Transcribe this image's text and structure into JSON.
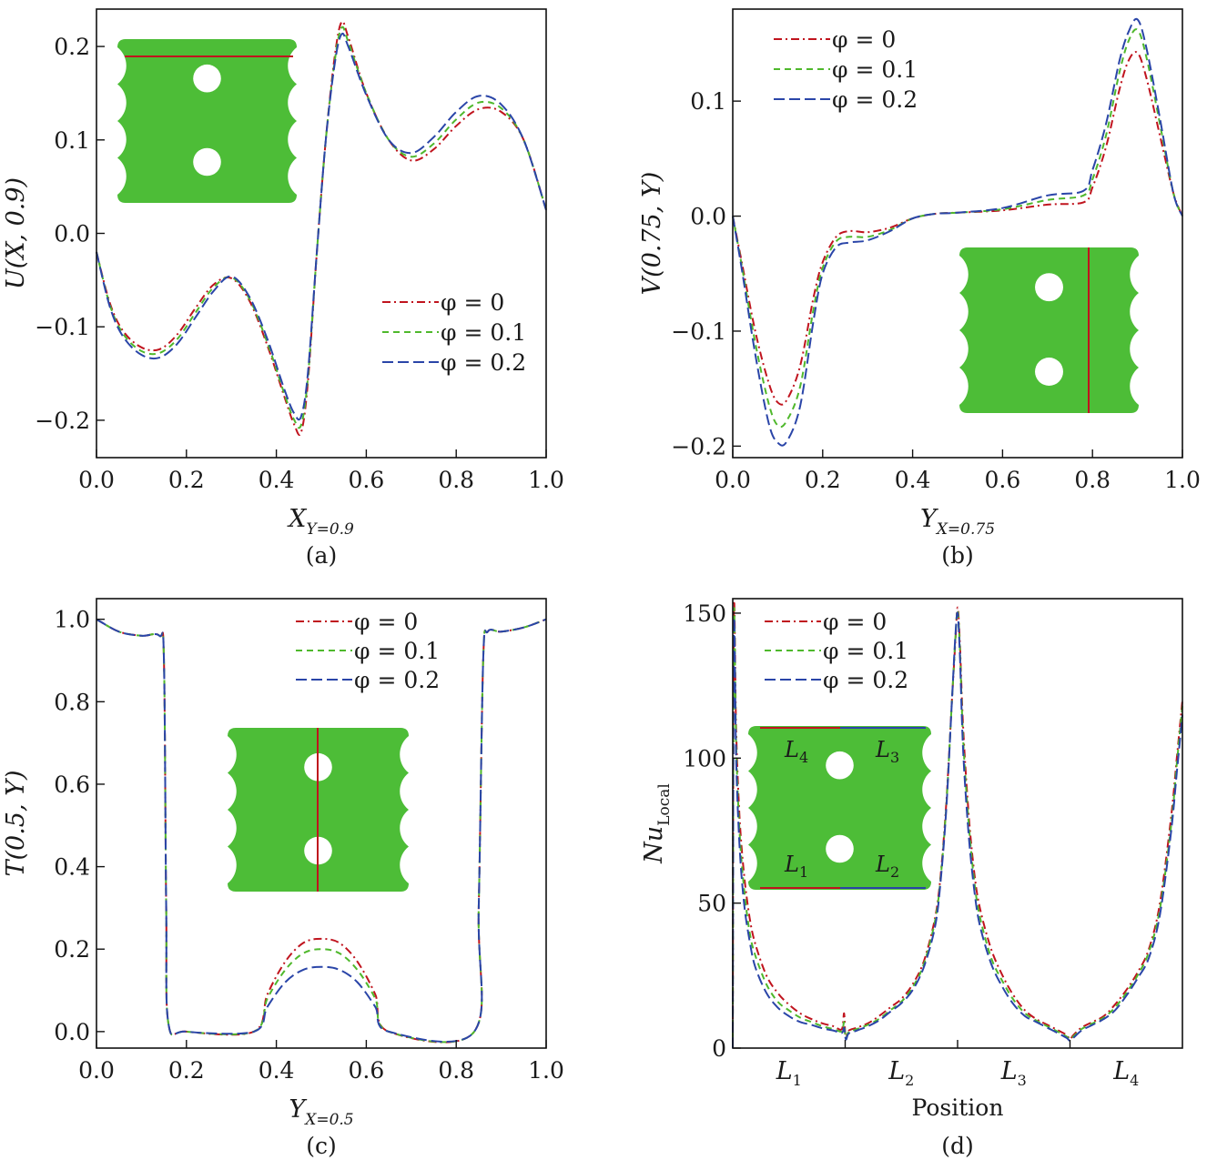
{
  "figure": {
    "panels": [
      "(a)",
      "(b)",
      "(c)",
      "(d)"
    ]
  },
  "colors": {
    "phi0": "#c0141e",
    "phi01": "#4fb82c",
    "phi02": "#2a45a8",
    "inset_fill": "#4dbd37",
    "inset_line": "#c0141e"
  },
  "chart_data": [
    {
      "panel": "(a)",
      "type": "line",
      "xlabel": "X",
      "xlabel_sub": "Y=0.9",
      "ylabel": "U(X, 0.9)",
      "xlim": [
        0,
        1
      ],
      "ylim": [
        -0.24,
        0.24
      ],
      "xticks": [
        "0.0",
        "0.2",
        "0.4",
        "0.6",
        "0.8",
        "1.0"
      ],
      "yticks": [
        "0.2",
        "0.1",
        "0.0",
        "−0.1",
        "−0.2"
      ],
      "ytick_values": [
        0.2,
        0.1,
        0.0,
        -0.1,
        -0.2
      ],
      "legend_position": "center-right",
      "legend": [
        "φ = 0",
        "φ = 0.1",
        "φ = 0.2"
      ],
      "x": [
        0,
        0.03,
        0.06,
        0.1,
        0.14,
        0.18,
        0.22,
        0.26,
        0.3,
        0.34,
        0.38,
        0.42,
        0.44,
        0.455,
        0.47,
        0.49,
        0.51,
        0.53,
        0.545,
        0.56,
        0.6,
        0.65,
        0.7,
        0.75,
        0.8,
        0.85,
        0.9,
        0.95,
        1.0
      ],
      "series": [
        {
          "name": "φ = 0",
          "values": [
            -0.02,
            -0.075,
            -0.105,
            -0.122,
            -0.124,
            -0.108,
            -0.08,
            -0.055,
            -0.048,
            -0.072,
            -0.12,
            -0.178,
            -0.205,
            -0.213,
            -0.16,
            -0.02,
            0.1,
            0.19,
            0.226,
            0.21,
            0.15,
            0.1,
            0.078,
            0.09,
            0.115,
            0.133,
            0.13,
            0.1,
            0.025
          ]
        },
        {
          "name": "φ = 0.1",
          "values": [
            -0.02,
            -0.077,
            -0.108,
            -0.126,
            -0.128,
            -0.113,
            -0.085,
            -0.058,
            -0.047,
            -0.07,
            -0.117,
            -0.175,
            -0.2,
            -0.205,
            -0.155,
            -0.02,
            0.1,
            0.185,
            0.22,
            0.205,
            0.15,
            0.1,
            0.082,
            0.096,
            0.122,
            0.14,
            0.134,
            0.1,
            0.025
          ]
        },
        {
          "name": "φ = 0.2",
          "values": [
            -0.02,
            -0.079,
            -0.111,
            -0.13,
            -0.133,
            -0.118,
            -0.09,
            -0.062,
            -0.046,
            -0.068,
            -0.113,
            -0.17,
            -0.193,
            -0.196,
            -0.15,
            -0.02,
            0.1,
            0.182,
            0.213,
            0.2,
            0.148,
            0.1,
            0.086,
            0.103,
            0.13,
            0.147,
            0.138,
            0.1,
            0.025
          ]
        }
      ]
    },
    {
      "panel": "(b)",
      "type": "line",
      "xlabel": "Y",
      "xlabel_sub": "X=0.75",
      "ylabel": "V(0.75, Y)",
      "xlim": [
        0,
        1
      ],
      "ylim": [
        -0.21,
        0.18
      ],
      "xticks": [
        "0.0",
        "0.2",
        "0.4",
        "0.6",
        "0.8",
        "1.0"
      ],
      "yticks": [
        "0.1",
        "0.0",
        "−0.1",
        "−0.2"
      ],
      "ytick_values": [
        0.1,
        0.0,
        -0.1,
        -0.2
      ],
      "legend_position": "top-left",
      "legend": [
        "φ = 0",
        "φ = 0.1",
        "φ = 0.2"
      ],
      "x": [
        0,
        0.02,
        0.05,
        0.08,
        0.1,
        0.12,
        0.15,
        0.18,
        0.2,
        0.23,
        0.26,
        0.3,
        0.35,
        0.4,
        0.45,
        0.5,
        0.6,
        0.7,
        0.78,
        0.8,
        0.83,
        0.86,
        0.88,
        0.9,
        0.92,
        0.95,
        0.98,
        1.0
      ],
      "series": [
        {
          "name": "φ = 0",
          "values": [
            0,
            -0.04,
            -0.1,
            -0.145,
            -0.162,
            -0.16,
            -0.13,
            -0.07,
            -0.04,
            -0.018,
            -0.013,
            -0.014,
            -0.01,
            -0.002,
            0.002,
            0.003,
            0.005,
            0.01,
            0.012,
            0.025,
            0.06,
            0.11,
            0.135,
            0.142,
            0.12,
            0.07,
            0.02,
            0
          ]
        },
        {
          "name": "φ = 0.1",
          "values": [
            0,
            -0.043,
            -0.11,
            -0.163,
            -0.182,
            -0.178,
            -0.148,
            -0.08,
            -0.045,
            -0.022,
            -0.018,
            -0.018,
            -0.012,
            -0.002,
            0.002,
            0.003,
            0.006,
            0.014,
            0.018,
            0.032,
            0.07,
            0.125,
            0.152,
            0.162,
            0.138,
            0.08,
            0.02,
            0
          ]
        },
        {
          "name": "φ = 0.2",
          "values": [
            0,
            -0.046,
            -0.12,
            -0.18,
            -0.197,
            -0.196,
            -0.165,
            -0.09,
            -0.05,
            -0.027,
            -0.023,
            -0.021,
            -0.013,
            -0.002,
            0.002,
            0.003,
            0.007,
            0.018,
            0.022,
            0.04,
            0.08,
            0.135,
            0.16,
            0.171,
            0.146,
            0.085,
            0.02,
            0
          ]
        }
      ]
    },
    {
      "panel": "(c)",
      "type": "line",
      "xlabel": "Y",
      "xlabel_sub": "X=0.5",
      "ylabel": "T(0.5, Y)",
      "xlim": [
        0,
        1
      ],
      "ylim": [
        -0.04,
        1.05
      ],
      "xticks": [
        "0.0",
        "0.2",
        "0.4",
        "0.6",
        "0.8",
        "1.0"
      ],
      "yticks": [
        "1.0",
        "0.8",
        "0.6",
        "0.4",
        "0.2",
        "0.0"
      ],
      "ytick_values": [
        1.0,
        0.8,
        0.6,
        0.4,
        0.2,
        0.0
      ],
      "legend_position": "top-center",
      "legend": [
        "φ = 0",
        "φ = 0.1",
        "φ = 0.2"
      ],
      "x": [
        0,
        0.05,
        0.1,
        0.14,
        0.15,
        0.155,
        0.16,
        0.2,
        0.35,
        0.38,
        0.42,
        0.46,
        0.5,
        0.54,
        0.58,
        0.62,
        0.65,
        0.84,
        0.85,
        0.86,
        0.87,
        0.9,
        0.95,
        1.0
      ],
      "series": [
        {
          "name": "φ = 0",
          "values": [
            1.0,
            0.97,
            0.96,
            0.96,
            0.9,
            0.3,
            0.02,
            0,
            0,
            0.09,
            0.17,
            0.215,
            0.225,
            0.215,
            0.17,
            0.09,
            0,
            0,
            0.3,
            0.9,
            0.97,
            0.97,
            0.98,
            1.0
          ]
        },
        {
          "name": "φ = 0.1",
          "values": [
            1.0,
            0.97,
            0.96,
            0.96,
            0.9,
            0.3,
            0.02,
            0,
            0,
            0.08,
            0.15,
            0.19,
            0.2,
            0.19,
            0.15,
            0.08,
            0,
            0,
            0.3,
            0.9,
            0.97,
            0.97,
            0.98,
            1.0
          ]
        },
        {
          "name": "φ = 0.2",
          "values": [
            1.0,
            0.97,
            0.96,
            0.96,
            0.9,
            0.3,
            0.02,
            0,
            0,
            0.06,
            0.12,
            0.15,
            0.157,
            0.15,
            0.12,
            0.06,
            0,
            0,
            0.3,
            0.9,
            0.97,
            0.97,
            0.98,
            1.0
          ]
        }
      ]
    },
    {
      "panel": "(d)",
      "type": "line",
      "xlabel": "Position",
      "ylabel": "Nu",
      "ylabel_sub": "Local",
      "xlim": [
        0,
        4
      ],
      "ylim": [
        0,
        155
      ],
      "xticks": [
        "L1",
        "L2",
        "L3",
        "L4"
      ],
      "xtick_values": [
        0.5,
        1.5,
        2.5,
        3.5
      ],
      "xtick_sub": [
        "1",
        "2",
        "3",
        "4"
      ],
      "xtick_letter": "L",
      "yticks": [
        "150",
        "100",
        "50",
        "0"
      ],
      "ytick_values": [
        150,
        100,
        50,
        0
      ],
      "legend_position": "top-left",
      "legend": [
        "φ = 0",
        "φ = 0.1",
        "φ = 0.2"
      ],
      "x": [
        0,
        0.01,
        0.03,
        0.06,
        0.1,
        0.15,
        0.2,
        0.3,
        0.4,
        0.5,
        0.6,
        0.7,
        0.8,
        0.9,
        0.97,
        0.99,
        1.0,
        1.01,
        1.03,
        1.1,
        1.2,
        1.3,
        1.4,
        1.5,
        1.6,
        1.7,
        1.8,
        1.85,
        1.9,
        1.95,
        1.98,
        2.0,
        2.02,
        2.05,
        2.1,
        2.15,
        2.2,
        2.3,
        2.4,
        2.5,
        2.6,
        2.7,
        2.8,
        2.9,
        2.97,
        3.0,
        3.03,
        3.1,
        3.2,
        3.3,
        3.4,
        3.5,
        3.6,
        3.7,
        3.8,
        3.9,
        3.95,
        4.0
      ],
      "series": [
        {
          "name": "φ = 0",
          "values": [
            0,
            150,
            110,
            80,
            60,
            45,
            36,
            25,
            19,
            15,
            12,
            10,
            8.5,
            7.5,
            6.5,
            12,
            5,
            4,
            6,
            7,
            8.5,
            11,
            14,
            17,
            22,
            30,
            45,
            60,
            85,
            120,
            140,
            152,
            140,
            110,
            80,
            60,
            48,
            34,
            25,
            18,
            13,
            10,
            8,
            6,
            4.5,
            3,
            4.5,
            7,
            9,
            11,
            15,
            20,
            26,
            34,
            50,
            80,
            100,
            120
          ]
        },
        {
          "name": "φ = 0.1",
          "values": [
            0,
            148,
            105,
            75,
            55,
            40,
            32,
            22,
            16,
            13,
            10.5,
            9,
            7.5,
            6.5,
            5.8,
            9,
            4.5,
            3.5,
            5.5,
            6.5,
            8,
            10,
            13,
            16,
            21,
            29,
            44,
            59,
            84,
            120,
            141,
            151,
            138,
            106,
            77,
            57,
            45,
            31,
            23,
            16.5,
            12,
            9.5,
            7.5,
            5.5,
            4,
            3,
            4,
            6.5,
            8.5,
            10.5,
            14,
            19,
            25,
            33,
            48,
            77,
            98,
            118
          ]
        },
        {
          "name": "φ = 0.2",
          "values": [
            0,
            145,
            100,
            70,
            50,
            37,
            28,
            19,
            14,
            11,
            9,
            8,
            6.8,
            6,
            5.2,
            7,
            4,
            3,
            5,
            6,
            7.5,
            9.5,
            12.5,
            15.5,
            20,
            28,
            42,
            58,
            83,
            120,
            142,
            150,
            136,
            102,
            73,
            54,
            42,
            29,
            21,
            15,
            11,
            9,
            7,
            5,
            3.5,
            2.5,
            3.5,
            6,
            8,
            10,
            13,
            18,
            24,
            31,
            46,
            75,
            95,
            115
          ]
        }
      ]
    }
  ],
  "inset_d": {
    "labels": [
      {
        "letter": "L",
        "sub": "4"
      },
      {
        "letter": "L",
        "sub": "3"
      },
      {
        "letter": "L",
        "sub": "1"
      },
      {
        "letter": "L",
        "sub": "2"
      }
    ]
  }
}
